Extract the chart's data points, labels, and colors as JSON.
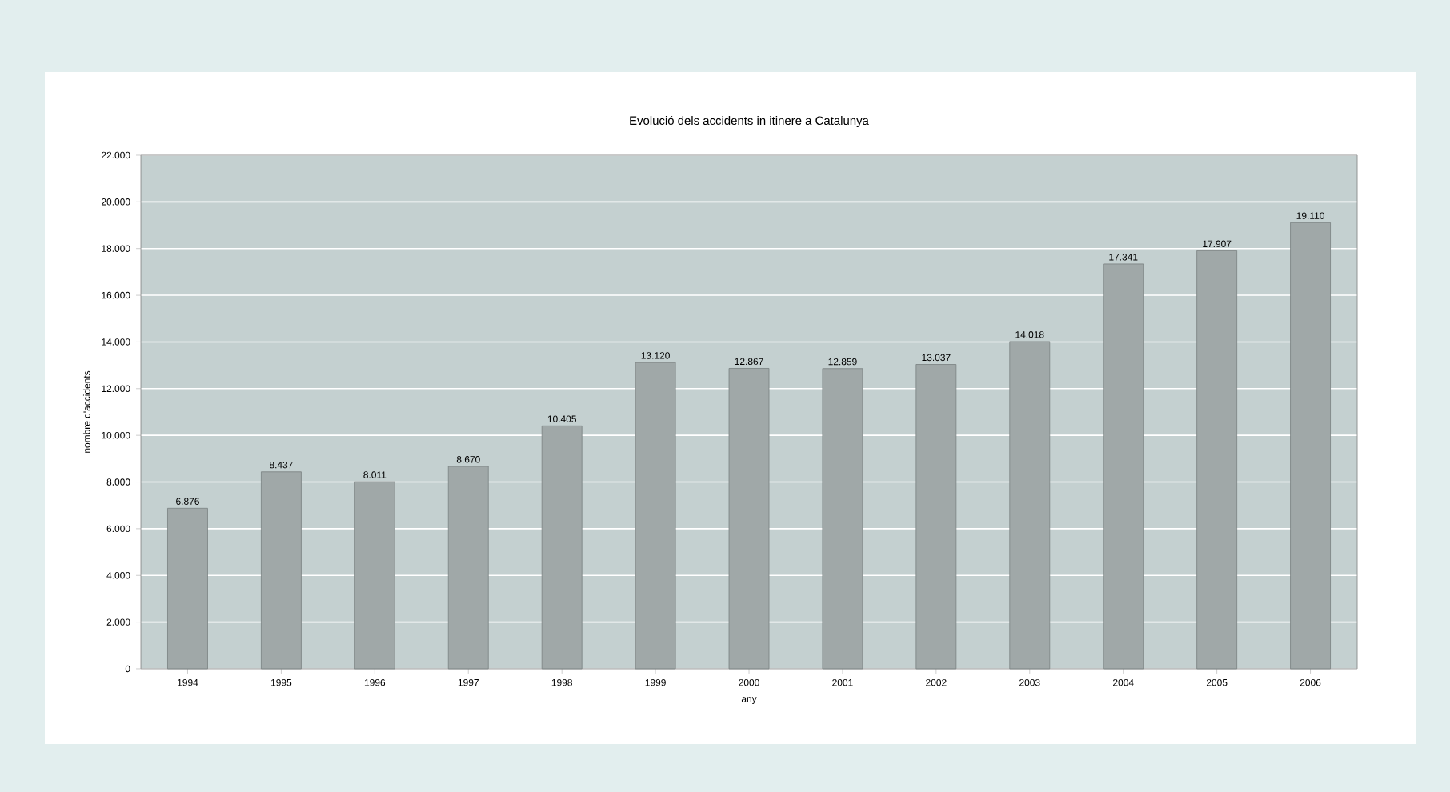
{
  "chart_data": {
    "type": "bar",
    "title": "Evolució dels accidents in itinere a Catalunya",
    "xlabel": "any",
    "ylabel": "nombre d'accidents",
    "categories": [
      "1994",
      "1995",
      "1996",
      "1997",
      "1998",
      "1999",
      "2000",
      "2001",
      "2002",
      "2003",
      "2004",
      "2005",
      "2006"
    ],
    "values": [
      6876,
      8437,
      8011,
      8670,
      10405,
      13120,
      12867,
      12859,
      13037,
      14018,
      17341,
      17907,
      19110
    ],
    "value_labels": [
      "6.876",
      "8.437",
      "8.011",
      "8.670",
      "10.405",
      "13.120",
      "12.867",
      "12.859",
      "13.037",
      "14.018",
      "17.341",
      "17.907",
      "19.110"
    ],
    "color": "#a0a8a8",
    "ylim": [
      0,
      22000
    ],
    "yticks": [
      {
        "value": 0,
        "label": "0"
      },
      {
        "value": 2000,
        "label": "2.000"
      },
      {
        "value": 4000,
        "label": "4.000"
      },
      {
        "value": 6000,
        "label": "6.000"
      },
      {
        "value": 8000,
        "label": "8.000"
      },
      {
        "value": 10000,
        "label": "10.000"
      },
      {
        "value": 12000,
        "label": "12.000"
      },
      {
        "value": 14000,
        "label": "14.000"
      },
      {
        "value": 16000,
        "label": "16.000"
      },
      {
        "value": 18000,
        "label": "18.000"
      },
      {
        "value": 20000,
        "label": "20.000"
      },
      {
        "value": 22000,
        "label": "22.000"
      }
    ],
    "grid": "y"
  }
}
